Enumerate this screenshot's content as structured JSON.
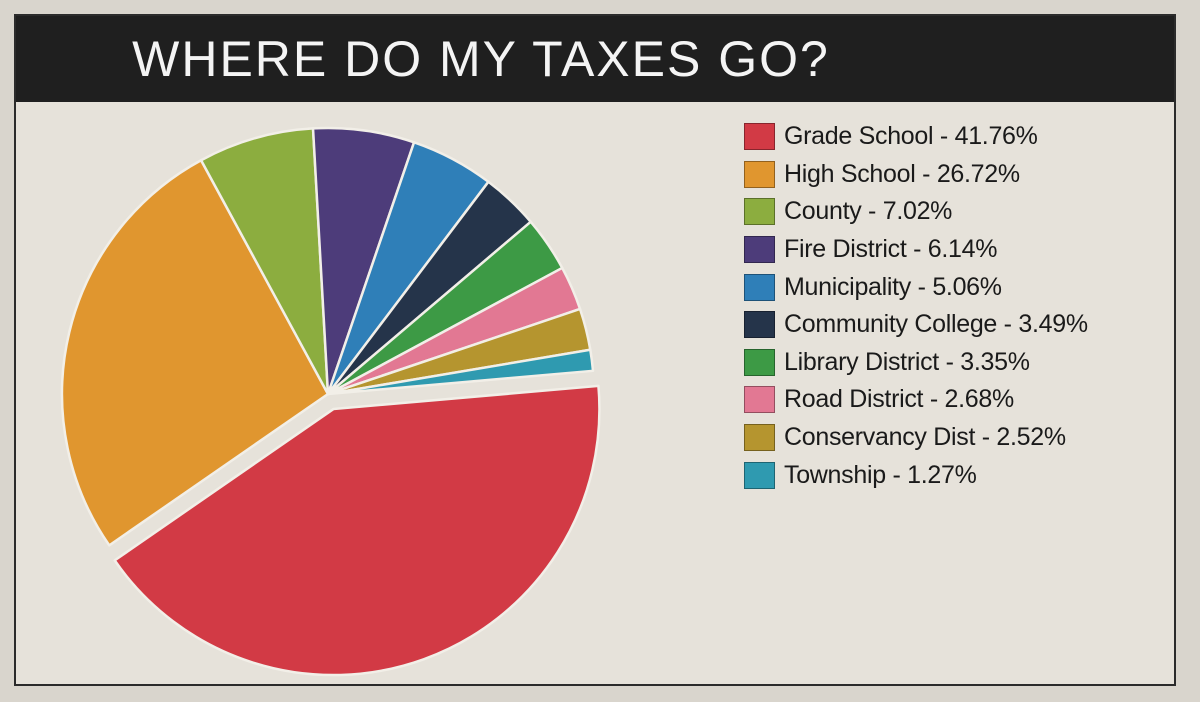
{
  "chart_data": {
    "type": "pie",
    "title": "WHERE DO MY TAXES GO?",
    "slices": [
      {
        "label": "Grade School - 41.76%",
        "name": "Grade School",
        "value": 41.76,
        "color": "#d23a45"
      },
      {
        "label": "High School - 26.72%",
        "name": "High School",
        "value": 26.72,
        "color": "#e0962f"
      },
      {
        "label": "County - 7.02%",
        "name": "County",
        "value": 7.02,
        "color": "#8cad3f"
      },
      {
        "label": "Fire District - 6.14%",
        "name": "Fire District",
        "value": 6.14,
        "color": "#4d3c7a"
      },
      {
        "label": "Municipality - 5.06%",
        "name": "Municipality",
        "value": 5.06,
        "color": "#2f7fb8"
      },
      {
        "label": "Community College - 3.49%",
        "name": "Community College",
        "value": 3.49,
        "color": "#25344a"
      },
      {
        "label": "Library District - 3.35%",
        "name": "Library District",
        "value": 3.35,
        "color": "#3d9a45"
      },
      {
        "label": "Road District - 2.68%",
        "name": "Road District",
        "value": 2.68,
        "color": "#e27893"
      },
      {
        "label": "Conservancy Dist - 2.52%",
        "name": "Conservancy Dist",
        "value": 2.52,
        "color": "#b5952f"
      },
      {
        "label": "Township - 1.27%",
        "name": "Township",
        "value": 1.27,
        "color": "#2f9ab0"
      }
    ],
    "legend_position": "right",
    "exploded_slice": "Grade School"
  }
}
